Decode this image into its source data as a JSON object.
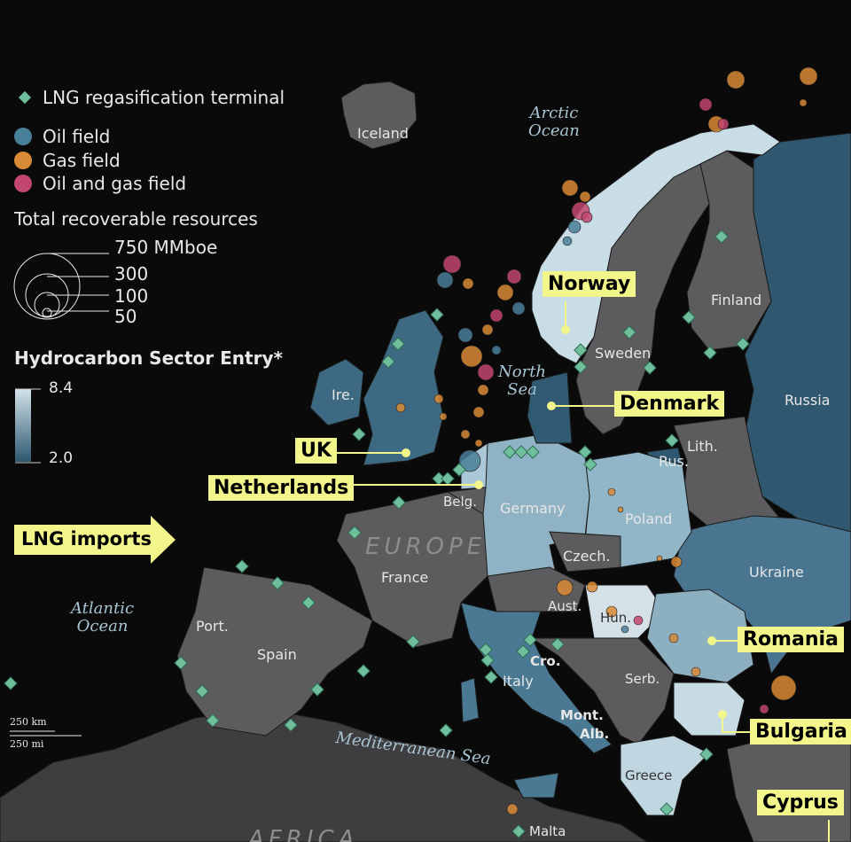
{
  "colors": {
    "background": "#0a0a0a",
    "land_no_data": "#5c5c5e",
    "lng_terminal": "#6fbf9c",
    "oil_field": "#4a7f99",
    "gas_field": "#d98a35",
    "oil_and_gas_field": "#c2466f",
    "callout": "#f2f58a",
    "scale_low": "#2d5870",
    "scale_high": "#d3e3ea"
  },
  "legend": {
    "lng": "LNG regasification terminal",
    "oil": "Oil field",
    "gas": "Gas field",
    "oil_gas": "Oil and gas field",
    "size_title": "Total recoverable resources",
    "size_values": [
      "750 MMboe",
      "300",
      "100",
      "50"
    ],
    "scale_title": "Hydrocarbon Sector Entry*",
    "scale_max": "8.4",
    "scale_min": "2.0"
  },
  "scale_bar": {
    "km": "250 km",
    "mi": "250 mi"
  },
  "arrow": {
    "label": "LNG imports",
    "icon": "arrow-right-icon"
  },
  "regions": {
    "europe": "EUROPE",
    "africa": "AFRICA"
  },
  "seas": {
    "arctic": [
      "Arctic",
      "Ocean"
    ],
    "north": [
      "North",
      "Sea"
    ],
    "atlantic": [
      "Atlantic",
      "Ocean"
    ],
    "med": "Mediterranean Sea"
  },
  "countries": {
    "iceland": "Iceland",
    "ireland": "Ire.",
    "sweden": "Sweden",
    "finland": "Finland",
    "russia": "Russia",
    "lithuania": "Lith.",
    "kaliningrad": "Rus.",
    "germany": "Germany",
    "poland": "Poland",
    "belgium": "Belg.",
    "france": "France",
    "czech": "Czech.",
    "ukraine": "Ukraine",
    "austria": "Aust.",
    "hungary": "Hun.",
    "portugal": "Port.",
    "spain": "Spain",
    "italy": "Italy",
    "croatia": "Cro.",
    "serbia": "Serb.",
    "montenegro": "Mont.",
    "albania": "Alb.",
    "greece": "Greece",
    "malta": "Malta"
  },
  "callouts": {
    "norway": "Norway",
    "denmark": "Denmark",
    "uk": "UK",
    "netherlands": "Netherlands",
    "romania": "Romania",
    "bulgaria": "Bulgaria",
    "cyprus": "Cyprus"
  }
}
